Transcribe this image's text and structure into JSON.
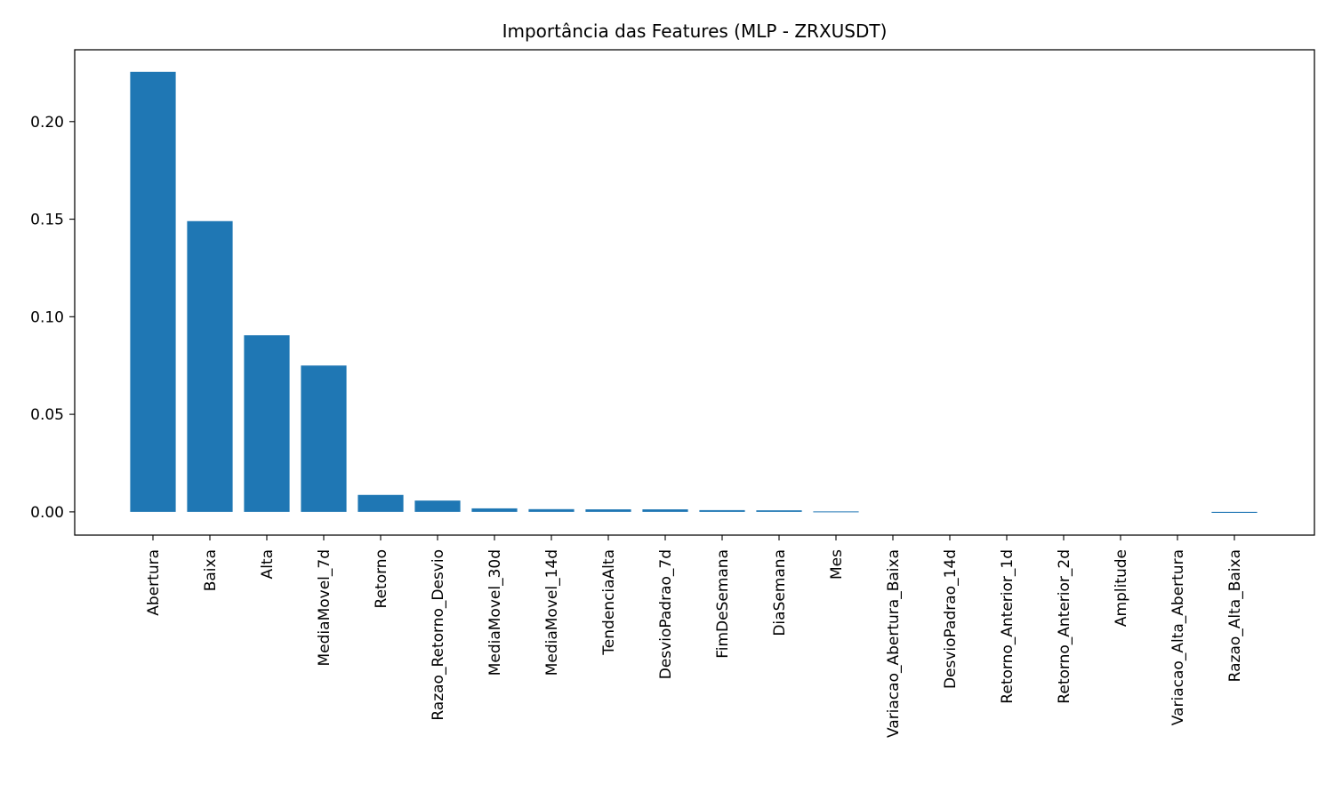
{
  "chart_data": {
    "type": "bar",
    "title": "Importância das Features (MLP - ZRXUSDT)",
    "xlabel": "",
    "ylabel": "",
    "categories": [
      "Abertura",
      "Baixa",
      "Alta",
      "MediaMovel_7d",
      "Retorno",
      "Razao_Retorno_Desvio",
      "MediaMovel_30d",
      "MediaMovel_14d",
      "TendenciaAlta",
      "DesvioPadrao_7d",
      "FimDeSemana",
      "DiaSemana",
      "Mes",
      "Variacao_Abertura_Baixa",
      "DesvioPadrao_14d",
      "Retorno_Anterior_1d",
      "Retorno_Anterior_2d",
      "Amplitude",
      "Variacao_Alta_Abertura",
      "Razao_Alta_Baixa"
    ],
    "values": [
      0.2255,
      0.149,
      0.0905,
      0.075,
      0.0087,
      0.0058,
      0.0018,
      0.0014,
      0.0013,
      0.0013,
      0.0009,
      0.0008,
      0.0003,
      0.0,
      0.0,
      0.0,
      0.0,
      0.0,
      0.0,
      -0.0005
    ],
    "ylim": [
      -0.0119,
      0.2368
    ],
    "yticks": [
      0.0,
      0.05,
      0.1,
      0.15,
      0.2
    ],
    "ytick_labels": [
      "0.00",
      "0.05",
      "0.10",
      "0.15",
      "0.20"
    ],
    "bar_color": "#1f77b4",
    "grid": false,
    "legend": "none"
  }
}
